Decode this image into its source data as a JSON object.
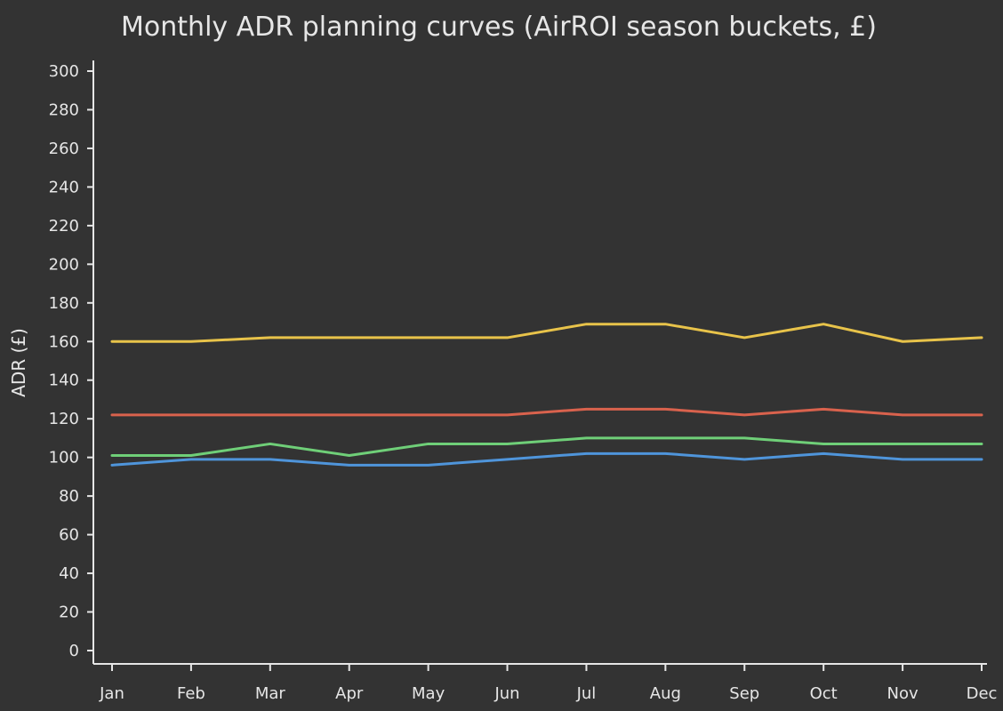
{
  "chart_data": {
    "type": "line",
    "title": "Monthly ADR planning curves (AirROI season buckets, £)",
    "xlabel": "",
    "ylabel": "ADR (£)",
    "categories": [
      "Jan",
      "Feb",
      "Mar",
      "Apr",
      "May",
      "Jun",
      "Jul",
      "Aug",
      "Sep",
      "Oct",
      "Nov",
      "Dec"
    ],
    "ylim": [
      0,
      300
    ],
    "yticks": [
      0,
      20,
      40,
      60,
      80,
      100,
      120,
      140,
      160,
      180,
      200,
      220,
      240,
      260,
      280,
      300
    ],
    "grid": false,
    "series": [
      {
        "name": "yellow",
        "color": "#e8c34a",
        "values": [
          160,
          160,
          162,
          162,
          162,
          162,
          169,
          169,
          162,
          169,
          160,
          162
        ]
      },
      {
        "name": "red",
        "color": "#d9624d",
        "values": [
          122,
          122,
          122,
          122,
          122,
          122,
          125,
          125,
          122,
          125,
          122,
          122
        ]
      },
      {
        "name": "green",
        "color": "#6fcf78",
        "values": [
          101,
          101,
          107,
          101,
          107,
          107,
          110,
          110,
          110,
          107,
          107,
          107
        ]
      },
      {
        "name": "blue",
        "color": "#4f95db",
        "values": [
          96,
          99,
          99,
          96,
          96,
          99,
          102,
          102,
          99,
          102,
          99,
          99
        ]
      }
    ]
  }
}
